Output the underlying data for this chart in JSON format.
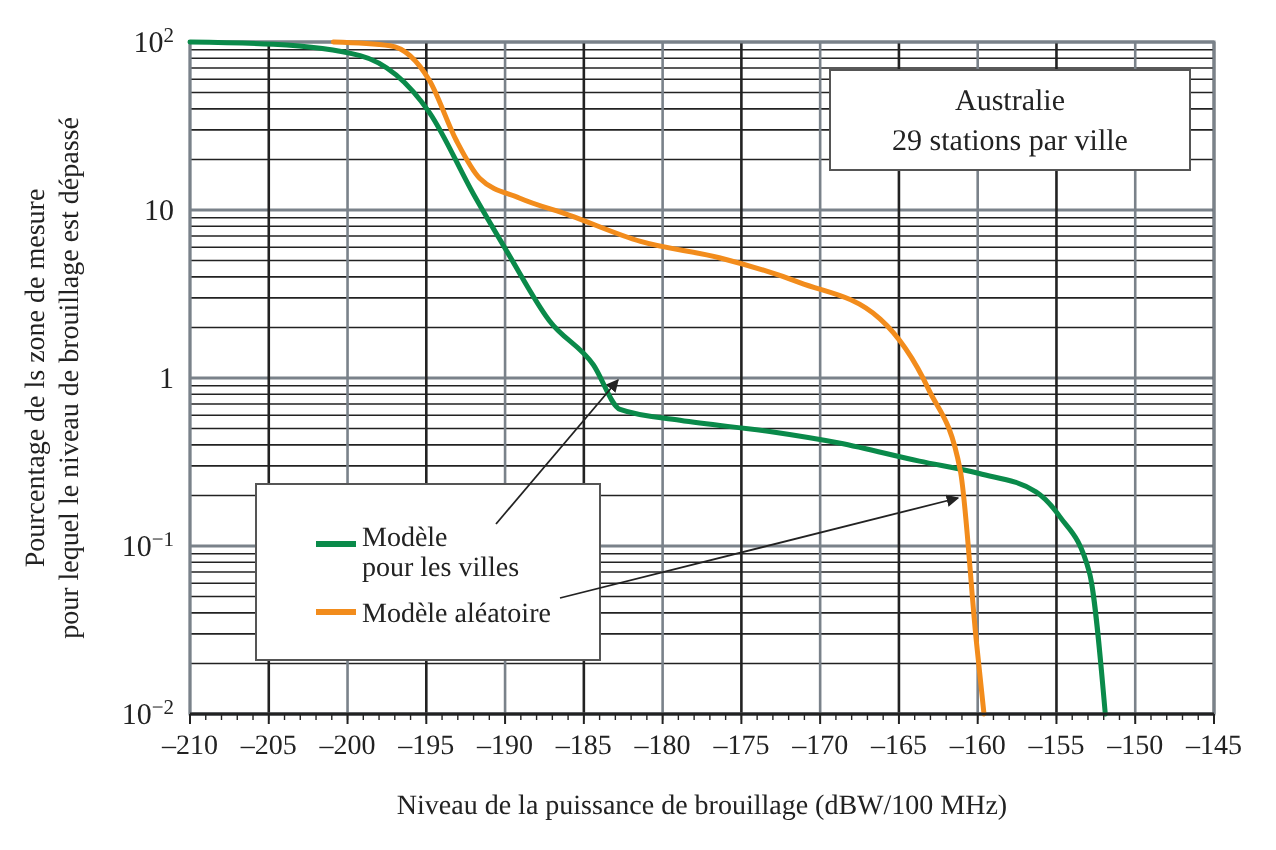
{
  "chart_data": {
    "type": "line",
    "xlabel": "Niveau de la puissance de brouillage (dBW/100 MHz)",
    "ylabel": "Pourcentage de ls zone de mesure\npour lequel le niveau de brouillage est dépassé",
    "annotations": [
      "Australie",
      "29 stations par ville"
    ],
    "log": "y",
    "grid": true,
    "legend": "bottom left",
    "line_style": "solid",
    "xlim": [
      -210,
      -145
    ],
    "ylim": [
      0.01,
      100
    ],
    "xticks": [
      {
        "value": -210,
        "label": "–210"
      },
      {
        "value": -205,
        "label": "–205"
      },
      {
        "value": -200,
        "label": "–200"
      },
      {
        "value": -195,
        "label": "–195"
      },
      {
        "value": -190,
        "label": "–190"
      },
      {
        "value": -185,
        "label": "–185"
      },
      {
        "value": -180,
        "label": "–180"
      },
      {
        "value": -175,
        "label": "–175"
      },
      {
        "value": -170,
        "label": "–170"
      },
      {
        "value": -165,
        "label": "–165"
      },
      {
        "value": -160,
        "label": "–160"
      },
      {
        "value": -155,
        "label": "–155"
      },
      {
        "value": -150,
        "label": "–150"
      },
      {
        "value": -145,
        "label": "–145"
      }
    ],
    "yticks": [
      {
        "value": 0.01,
        "label": "10$^{−2}$"
      },
      {
        "value": 0.1,
        "label": "10$^{−1}$"
      },
      1,
      10,
      {
        "value": 100,
        "label": "10$^{2}$"
      }
    ],
    "series": [
      {
        "name": "Modèle\npour les villes",
        "color": "#0a8a4a",
        "x": [
          -210,
          -204.7,
          -199.2,
          -194.8,
          -192,
          -189.8,
          -187.2,
          -184.4,
          -182.7,
          -178.9,
          -173.2,
          -168.8,
          -163.7,
          -159.9,
          -156.3,
          -154.8,
          -152.9,
          -151.9
        ],
        "values": [
          100,
          97,
          83,
          38,
          12.4,
          5.5,
          2.2,
          1.2,
          0.65,
          0.56,
          0.48,
          0.41,
          0.32,
          0.27,
          0.21,
          0.15,
          0.069,
          0.01
        ]
      },
      {
        "name": "Modèle aléatoire",
        "color": "#f28c1c",
        "x": [
          -200.9,
          -197.3,
          -194.8,
          -193.1,
          -191.6,
          -189.1,
          -185.9,
          -181.4,
          -176.4,
          -171.3,
          -166.2,
          -163.1,
          -161.1,
          -160.1,
          -159.6
        ],
        "values": [
          100,
          95,
          59,
          26,
          15.4,
          11.8,
          9.3,
          6.5,
          5.2,
          3.7,
          2.25,
          0.85,
          0.28,
          0.028,
          0.01
        ]
      }
    ]
  }
}
